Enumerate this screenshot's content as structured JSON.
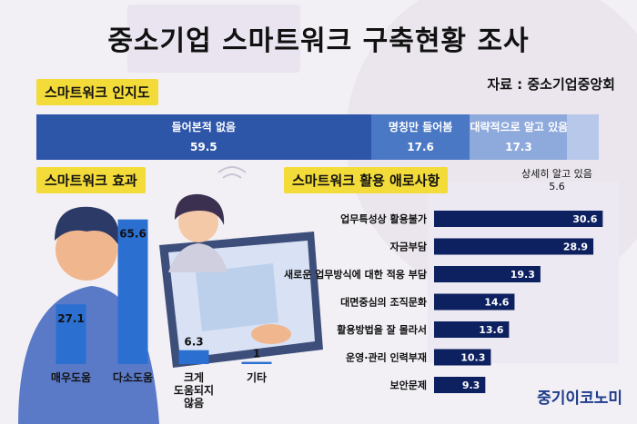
{
  "title": "중소기업 스마트워크 구축현황 조사",
  "source": "자료 : 중소기업중앙회",
  "logo": "중기이코노미",
  "sections": {
    "awareness": "스마트워크 인지도",
    "effect": "스마트워크 효과",
    "difficulty": "스마트워크 활용 애로사항"
  },
  "colors": {
    "navy": "#1f3a7d",
    "bar_blue": "#2b6fd1",
    "dark_navy": "#0d2060",
    "yellow": "#f3dc3a"
  },
  "chart_data": [
    {
      "type": "bar",
      "stacked": true,
      "orientation": "horizontal",
      "title": "스마트워크 인지도",
      "series": [
        {
          "name": "들어본적 없음",
          "values": [
            59.5
          ],
          "color": "#2d55a8"
        },
        {
          "name": "명칭만 들어봄",
          "values": [
            17.6
          ],
          "color": "#4a78c4"
        },
        {
          "name": "대략적으로 알고 있음",
          "values": [
            17.3
          ],
          "color": "#8ea9dc"
        },
        {
          "name": "상세히 알고 있음",
          "values": [
            5.6
          ],
          "color": "#b7c8ea"
        }
      ]
    },
    {
      "type": "bar",
      "orientation": "vertical",
      "title": "스마트워크 효과",
      "categories": [
        "매우도움",
        "다소도움",
        "크게\n도움되지\n않음",
        "기타"
      ],
      "values": [
        27.1,
        65.6,
        6.3,
        1
      ],
      "ylim": [
        0,
        70
      ]
    },
    {
      "type": "bar",
      "orientation": "horizontal",
      "title": "스마트워크 활용 애로사항",
      "categories": [
        "업무특성상 활용불가",
        "자금부담",
        "새로운 업무방식에 대한 적응 부담",
        "대면중심의 조직문화",
        "활용방법을 잘 몰라서",
        "운영·관리 인력부재",
        "보안문제"
      ],
      "values": [
        30.6,
        28.9,
        19.3,
        14.6,
        13.6,
        10.3,
        9.3
      ],
      "xlim": [
        0,
        35
      ]
    }
  ]
}
